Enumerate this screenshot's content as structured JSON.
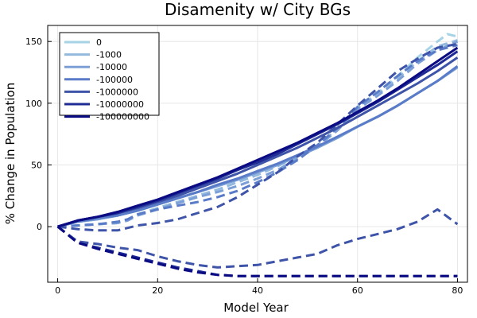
{
  "chart_data": {
    "type": "line",
    "title": "Disamenity w/ City BGs",
    "xlabel": "Model Year",
    "ylabel": "% Change in Population",
    "xlim": [
      -2,
      82
    ],
    "ylim": [
      -45,
      163
    ],
    "xticks": [
      0,
      20,
      40,
      60,
      80
    ],
    "yticks": [
      0,
      50,
      100,
      150
    ],
    "grid": true,
    "legend_position": "top-left",
    "series": [
      {
        "name": "0",
        "color": "#a7d3e6",
        "solid": [
          [
            0,
            0
          ],
          [
            4,
            4
          ],
          [
            8,
            6
          ],
          [
            12,
            9
          ],
          [
            16,
            13
          ],
          [
            20,
            18
          ],
          [
            24,
            23
          ],
          [
            28,
            28
          ],
          [
            32,
            33
          ],
          [
            36,
            38
          ],
          [
            40,
            44
          ],
          [
            44,
            50
          ],
          [
            48,
            57
          ],
          [
            52,
            64
          ],
          [
            56,
            72
          ],
          [
            60,
            81
          ],
          [
            64,
            89
          ],
          [
            68,
            98
          ],
          [
            72,
            108
          ],
          [
            76,
            118
          ],
          [
            80,
            129
          ]
        ],
        "dashed": [
          [
            0,
            0
          ],
          [
            4,
            1
          ],
          [
            8,
            2
          ],
          [
            12,
            3
          ],
          [
            14,
            6
          ],
          [
            16,
            10
          ],
          [
            20,
            15
          ],
          [
            24,
            20
          ],
          [
            28,
            25
          ],
          [
            32,
            30
          ],
          [
            36,
            36
          ],
          [
            40,
            42
          ],
          [
            44,
            49
          ],
          [
            48,
            57
          ],
          [
            52,
            66
          ],
          [
            56,
            79
          ],
          [
            60,
            97
          ],
          [
            64,
            108
          ],
          [
            68,
            122
          ],
          [
            72,
            137
          ],
          [
            76,
            150
          ],
          [
            78,
            156
          ],
          [
            80,
            154
          ]
        ]
      },
      {
        "name": "-1000",
        "color": "#93b9de",
        "solid": [
          [
            0,
            0
          ],
          [
            4,
            4
          ],
          [
            8,
            6
          ],
          [
            12,
            9
          ],
          [
            16,
            13
          ],
          [
            20,
            18
          ],
          [
            24,
            23
          ],
          [
            28,
            28
          ],
          [
            32,
            33
          ],
          [
            36,
            38
          ],
          [
            40,
            44
          ],
          [
            44,
            50
          ],
          [
            48,
            57
          ],
          [
            52,
            64
          ],
          [
            56,
            72
          ],
          [
            60,
            81
          ],
          [
            64,
            89
          ],
          [
            68,
            98
          ],
          [
            72,
            108
          ],
          [
            76,
            118
          ],
          [
            80,
            129
          ]
        ],
        "dashed": [
          [
            0,
            0
          ],
          [
            4,
            1
          ],
          [
            8,
            2
          ],
          [
            12,
            3
          ],
          [
            14,
            6
          ],
          [
            16,
            10
          ],
          [
            20,
            15
          ],
          [
            24,
            20
          ],
          [
            28,
            25
          ],
          [
            32,
            30
          ],
          [
            36,
            36
          ],
          [
            40,
            42
          ],
          [
            44,
            49
          ],
          [
            48,
            57
          ],
          [
            52,
            66
          ],
          [
            56,
            79
          ],
          [
            60,
            96
          ],
          [
            64,
            107
          ],
          [
            68,
            120
          ],
          [
            72,
            134
          ],
          [
            76,
            146
          ],
          [
            80,
            151
          ]
        ]
      },
      {
        "name": "-10000",
        "color": "#7b9fd6",
        "solid": [
          [
            0,
            0
          ],
          [
            4,
            4
          ],
          [
            8,
            6
          ],
          [
            12,
            9
          ],
          [
            16,
            13
          ],
          [
            20,
            18
          ],
          [
            24,
            23
          ],
          [
            28,
            28
          ],
          [
            32,
            33
          ],
          [
            36,
            38
          ],
          [
            40,
            44
          ],
          [
            44,
            50
          ],
          [
            48,
            57
          ],
          [
            52,
            64
          ],
          [
            56,
            72
          ],
          [
            60,
            81
          ],
          [
            64,
            89
          ],
          [
            68,
            98
          ],
          [
            72,
            108
          ],
          [
            76,
            118
          ],
          [
            80,
            129
          ]
        ],
        "dashed": [
          [
            0,
            0
          ],
          [
            4,
            1
          ],
          [
            8,
            2
          ],
          [
            12,
            3
          ],
          [
            14,
            5
          ],
          [
            16,
            9
          ],
          [
            20,
            14
          ],
          [
            24,
            19
          ],
          [
            28,
            24
          ],
          [
            32,
            28
          ],
          [
            36,
            33
          ],
          [
            40,
            39
          ],
          [
            44,
            46
          ],
          [
            48,
            55
          ],
          [
            52,
            65
          ],
          [
            56,
            78
          ],
          [
            60,
            95
          ],
          [
            64,
            106
          ],
          [
            68,
            118
          ],
          [
            72,
            132
          ],
          [
            76,
            143
          ],
          [
            80,
            150
          ]
        ]
      },
      {
        "name": "-100000",
        "color": "#5a7cc8",
        "solid": [
          [
            0,
            0
          ],
          [
            4,
            4
          ],
          [
            8,
            7
          ],
          [
            12,
            9
          ],
          [
            16,
            13
          ],
          [
            20,
            18
          ],
          [
            24,
            23
          ],
          [
            28,
            28
          ],
          [
            32,
            34
          ],
          [
            36,
            39
          ],
          [
            40,
            45
          ],
          [
            44,
            51
          ],
          [
            48,
            58
          ],
          [
            52,
            65
          ],
          [
            56,
            73
          ],
          [
            60,
            81
          ],
          [
            64,
            89
          ],
          [
            68,
            98
          ],
          [
            72,
            108
          ],
          [
            76,
            118
          ],
          [
            80,
            130
          ]
        ],
        "dashed": [
          [
            0,
            0
          ],
          [
            4,
            1
          ],
          [
            8,
            2
          ],
          [
            12,
            4
          ],
          [
            14,
            6
          ],
          [
            16,
            10
          ],
          [
            20,
            14
          ],
          [
            24,
            17
          ],
          [
            28,
            20
          ],
          [
            32,
            24
          ],
          [
            36,
            29
          ],
          [
            40,
            36
          ],
          [
            44,
            44
          ],
          [
            48,
            54
          ],
          [
            52,
            66
          ],
          [
            56,
            80
          ],
          [
            60,
            97
          ],
          [
            64,
            109
          ],
          [
            68,
            122
          ],
          [
            72,
            134
          ],
          [
            76,
            143
          ],
          [
            80,
            147
          ]
        ]
      },
      {
        "name": "-1000000",
        "color": "#3e54a8",
        "solid": [
          [
            0,
            0
          ],
          [
            4,
            5
          ],
          [
            8,
            8
          ],
          [
            12,
            11
          ],
          [
            16,
            15
          ],
          [
            20,
            20
          ],
          [
            24,
            25
          ],
          [
            28,
            31
          ],
          [
            32,
            37
          ],
          [
            36,
            43
          ],
          [
            40,
            50
          ],
          [
            44,
            57
          ],
          [
            48,
            64
          ],
          [
            52,
            72
          ],
          [
            56,
            80
          ],
          [
            60,
            89
          ],
          [
            64,
            98
          ],
          [
            68,
            107
          ],
          [
            72,
            116
          ],
          [
            76,
            126
          ],
          [
            80,
            137
          ]
        ],
        "dashed": [
          [
            0,
            0
          ],
          [
            4,
            -2
          ],
          [
            8,
            -3
          ],
          [
            12,
            -3
          ],
          [
            16,
            1
          ],
          [
            20,
            3
          ],
          [
            24,
            6
          ],
          [
            28,
            11
          ],
          [
            32,
            16
          ],
          [
            36,
            24
          ],
          [
            40,
            34
          ],
          [
            44,
            44
          ],
          [
            48,
            57
          ],
          [
            52,
            68
          ],
          [
            56,
            83
          ],
          [
            60,
            98
          ],
          [
            64,
            112
          ],
          [
            68,
            126
          ],
          [
            72,
            136
          ],
          [
            76,
            145
          ],
          [
            80,
            148
          ]
        ],
        "dashed2": [
          [
            0,
            0
          ],
          [
            4,
            -12
          ],
          [
            8,
            -14
          ],
          [
            12,
            -17
          ],
          [
            16,
            -19
          ],
          [
            20,
            -24
          ],
          [
            24,
            -28
          ],
          [
            28,
            -31
          ],
          [
            32,
            -33
          ],
          [
            36,
            -32
          ],
          [
            40,
            -31
          ],
          [
            44,
            -28
          ],
          [
            48,
            -25
          ],
          [
            52,
            -22
          ],
          [
            56,
            -15
          ],
          [
            60,
            -10
          ],
          [
            64,
            -6
          ],
          [
            68,
            -2
          ],
          [
            72,
            4
          ],
          [
            76,
            14
          ],
          [
            80,
            2
          ]
        ]
      },
      {
        "name": "-10000000",
        "color": "#1f2c96",
        "solid": [
          [
            0,
            0
          ],
          [
            4,
            5
          ],
          [
            8,
            8
          ],
          [
            12,
            11
          ],
          [
            16,
            16
          ],
          [
            20,
            21
          ],
          [
            24,
            27
          ],
          [
            28,
            33
          ],
          [
            32,
            39
          ],
          [
            36,
            46
          ],
          [
            40,
            52
          ],
          [
            44,
            59
          ],
          [
            48,
            67
          ],
          [
            52,
            75
          ],
          [
            56,
            83
          ],
          [
            60,
            92
          ],
          [
            64,
            101
          ],
          [
            68,
            111
          ],
          [
            72,
            121
          ],
          [
            76,
            131
          ],
          [
            80,
            142
          ]
        ],
        "dashed2": [
          [
            0,
            0
          ],
          [
            4,
            -13
          ],
          [
            8,
            -17
          ],
          [
            12,
            -21
          ],
          [
            16,
            -25
          ],
          [
            20,
            -29
          ],
          [
            24,
            -33
          ],
          [
            28,
            -36
          ],
          [
            32,
            -39
          ],
          [
            36,
            -40
          ],
          [
            40,
            -40
          ],
          [
            44,
            -40
          ],
          [
            48,
            -40
          ],
          [
            52,
            -40
          ],
          [
            56,
            -40
          ],
          [
            60,
            -40
          ],
          [
            64,
            -40
          ],
          [
            68,
            -40
          ],
          [
            72,
            -40
          ],
          [
            76,
            -40
          ],
          [
            80,
            -40
          ]
        ]
      },
      {
        "name": "-100000000",
        "color": "#0a0a82",
        "solid": [
          [
            0,
            0
          ],
          [
            4,
            5
          ],
          [
            8,
            8
          ],
          [
            12,
            12
          ],
          [
            16,
            17
          ],
          [
            20,
            22
          ],
          [
            24,
            28
          ],
          [
            28,
            34
          ],
          [
            32,
            40
          ],
          [
            36,
            47
          ],
          [
            40,
            54
          ],
          [
            44,
            61
          ],
          [
            48,
            68
          ],
          [
            52,
            76
          ],
          [
            56,
            84
          ],
          [
            60,
            93
          ],
          [
            64,
            102
          ],
          [
            68,
            112
          ],
          [
            72,
            123
          ],
          [
            76,
            134
          ],
          [
            80,
            145
          ]
        ],
        "dashed2": [
          [
            0,
            0
          ],
          [
            4,
            -13
          ],
          [
            8,
            -18
          ],
          [
            12,
            -22
          ],
          [
            16,
            -26
          ],
          [
            20,
            -30
          ],
          [
            24,
            -34
          ],
          [
            28,
            -37
          ],
          [
            32,
            -39
          ],
          [
            36,
            -40
          ],
          [
            40,
            -40
          ],
          [
            44,
            -40
          ],
          [
            48,
            -40
          ],
          [
            52,
            -40
          ],
          [
            56,
            -40
          ],
          [
            60,
            -40
          ],
          [
            64,
            -40
          ],
          [
            68,
            -40
          ],
          [
            72,
            -40
          ],
          [
            76,
            -40
          ],
          [
            80,
            -40
          ]
        ]
      }
    ]
  }
}
